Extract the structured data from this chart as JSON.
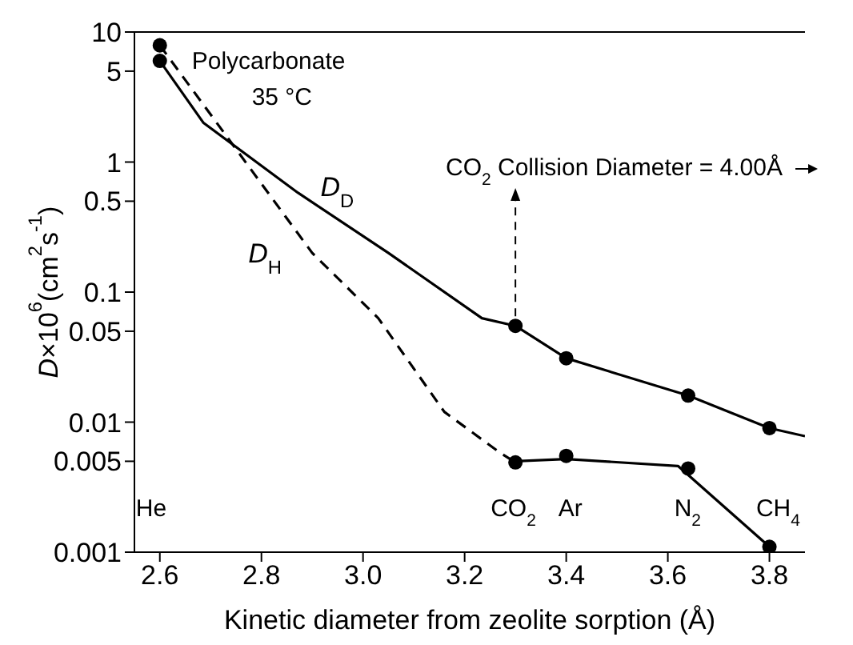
{
  "chart_data": {
    "type": "scatter",
    "xlabel": "Kinetic diameter from zeolite sorption (Å)",
    "ylabel": "D×10$^{6}$(cm$^{2}$s$^{-1}$)",
    "log": "y",
    "xlim": [
      2.55,
      3.87
    ],
    "ylim": [
      0.001,
      10
    ],
    "xticks": [
      {
        "value": 2.6,
        "label": "2.6"
      },
      {
        "value": 2.8,
        "label": "2.8"
      },
      {
        "value": 3.0,
        "label": "3.0"
      },
      {
        "value": 3.2,
        "label": "3.2"
      },
      {
        "value": 3.4,
        "label": "3.4"
      },
      {
        "value": 3.6,
        "label": "3.6"
      },
      {
        "value": 3.8,
        "label": "3.8"
      }
    ],
    "yticks": [
      0.001,
      0.005,
      0.01,
      0.05,
      0.1,
      0.5,
      1,
      5,
      10
    ],
    "marker": "circle",
    "series": [
      {
        "type": "line",
        "color": "#000000",
        "line_style": "solid",
        "marker": "none",
        "x": [
          2.6,
          2.686,
          2.872,
          3.05,
          3.234,
          3.3,
          3.4,
          3.64,
          3.8,
          3.87
        ],
        "values": [
          6,
          2.0,
          0.58,
          0.2,
          0.063,
          0.055,
          0.031,
          0.016,
          0.009,
          0.0078
        ]
      },
      {
        "type": "line",
        "color": "#000000",
        "line_style": "dashed",
        "marker": "none",
        "x": [
          2.6,
          2.9,
          3.03,
          3.16,
          3.27,
          3.3
        ],
        "values": [
          7.9,
          0.2,
          0.063,
          0.012,
          0.0058,
          0.0049
        ]
      },
      {
        "type": "line",
        "color": "#000000",
        "line_style": "solid",
        "marker": "none",
        "x": [
          3.3,
          3.4,
          3.62,
          3.8
        ],
        "values": [
          0.005,
          0.0052,
          0.0046,
          0.0011
        ]
      },
      {
        "color": "#000000",
        "x": [
          2.6,
          3.3,
          3.4,
          3.64,
          3.8
        ],
        "values": [
          6,
          0.055,
          0.031,
          0.016,
          0.009
        ]
      },
      {
        "color": "#000000",
        "x": [
          2.6,
          3.3,
          3.4,
          3.64,
          3.8
        ],
        "values": [
          7.9,
          0.0049,
          0.0055,
          0.0044,
          0.0011
        ]
      }
    ],
    "annotations": [
      "Polycarbonate",
      "35 °C",
      {
        "text": "CO$_{2}$ Collision Diameter = 4.00Å",
        "x": 3.3,
        "y": 0.055
      },
      {
        "text": "D$_{D}$",
        "x": 2.872,
        "y": 0.58
      },
      {
        "text": "D$_{H}$",
        "x": 2.9,
        "y": 0.2
      },
      "He",
      "CO$_{2}$",
      "Ar",
      "N$_{2}$",
      "CH$_{4}$"
    ]
  }
}
